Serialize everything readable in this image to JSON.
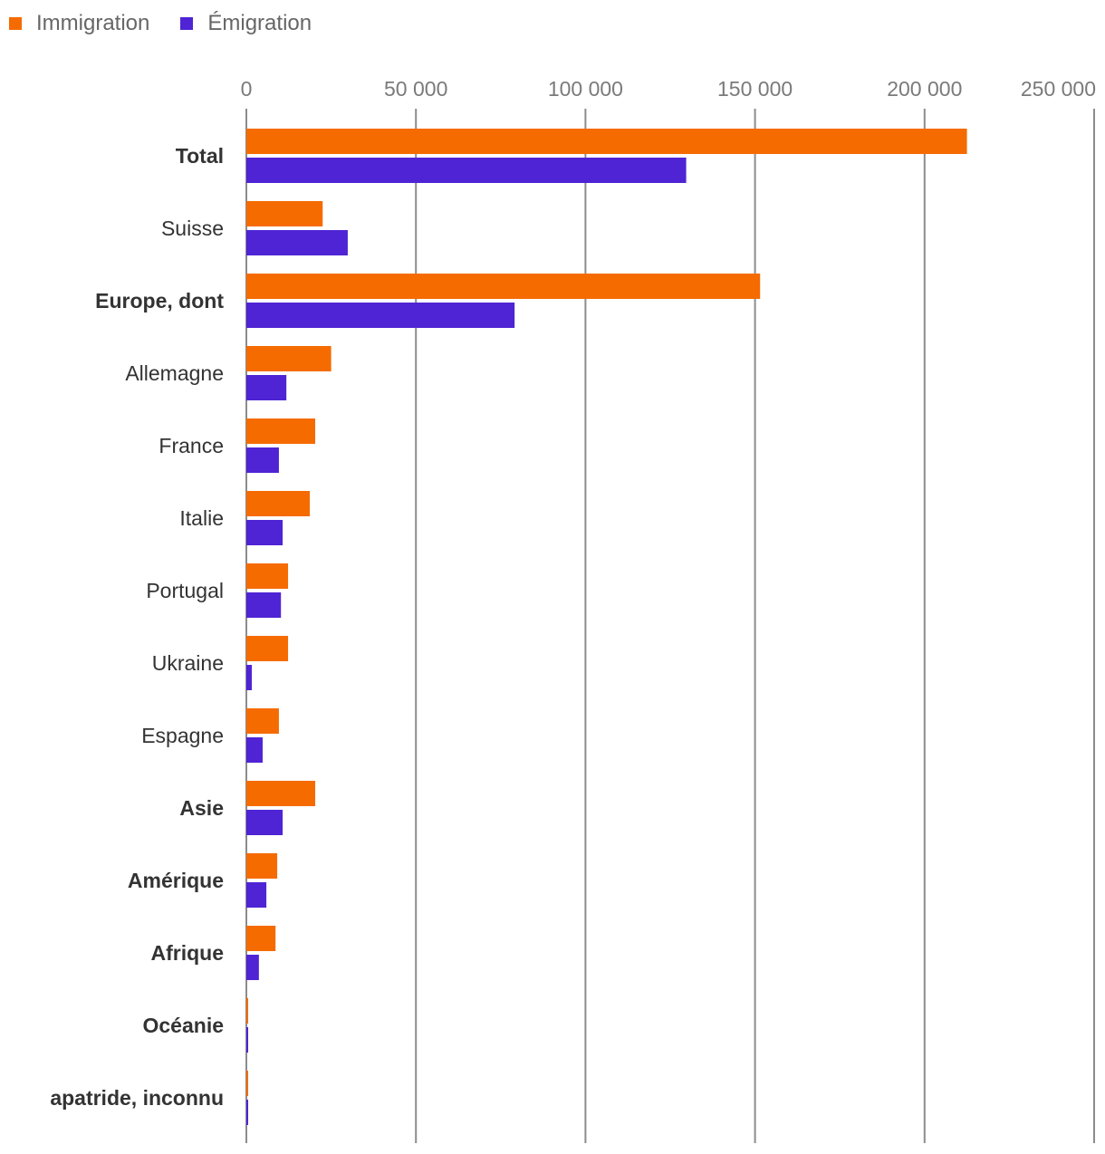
{
  "colors": {
    "immigration": "#f56b00",
    "emigration": "#4f24d4"
  },
  "chart_data": {
    "type": "bar",
    "orientation": "horizontal",
    "title": "",
    "xlabel": "",
    "ylabel": "",
    "xlim": [
      0,
      250000
    ],
    "ticks": [
      0,
      50000,
      100000,
      150000,
      200000,
      250000
    ],
    "tick_labels": [
      "0",
      "50 000",
      "100 000",
      "150 000",
      "200 000",
      "250 000"
    ],
    "grid": true,
    "legend_position": "top-left",
    "categories": [
      "Total",
      "Suisse",
      "Europe, dont",
      "Allemagne",
      "France",
      "Italie",
      "Portugal",
      "Ukraine",
      "Espagne",
      "Asie",
      "Amérique",
      "Afrique",
      "Océanie",
      "apatride, inconnu"
    ],
    "bold_categories": [
      "Total",
      "Europe, dont",
      "Asie",
      "Amérique",
      "Afrique",
      "Océanie",
      "apatride, inconnu"
    ],
    "series": [
      {
        "name": "Immigration",
        "values": [
          212500,
          22500,
          151500,
          25000,
          20300,
          18700,
          12300,
          12300,
          9600,
          20300,
          9100,
          8600,
          500,
          400
        ]
      },
      {
        "name": "Émigration",
        "values": [
          129700,
          29900,
          79100,
          11800,
          9600,
          10700,
          10200,
          1600,
          4800,
          10700,
          5900,
          3700,
          400,
          400
        ]
      }
    ]
  }
}
